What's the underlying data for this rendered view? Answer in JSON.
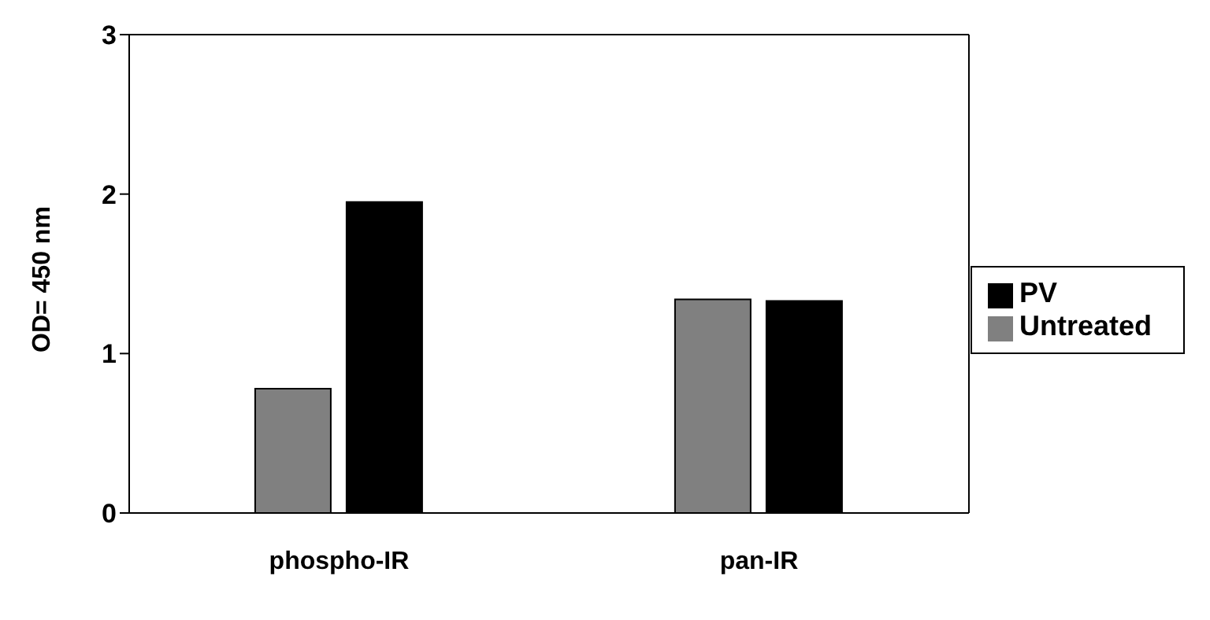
{
  "chart_data": {
    "type": "bar",
    "ylabel": "OD= 450 nm",
    "categories": [
      "phospho-IR",
      "pan-IR"
    ],
    "series": [
      {
        "name": "Untreated",
        "color": "#808080",
        "values": [
          0.78,
          1.34
        ]
      },
      {
        "name": "PV",
        "color": "#000000",
        "values": [
          1.95,
          1.33
        ]
      }
    ],
    "ylim": [
      0,
      3
    ],
    "yticks": [
      0,
      1,
      2,
      3
    ],
    "grid": false,
    "legend": "right"
  }
}
